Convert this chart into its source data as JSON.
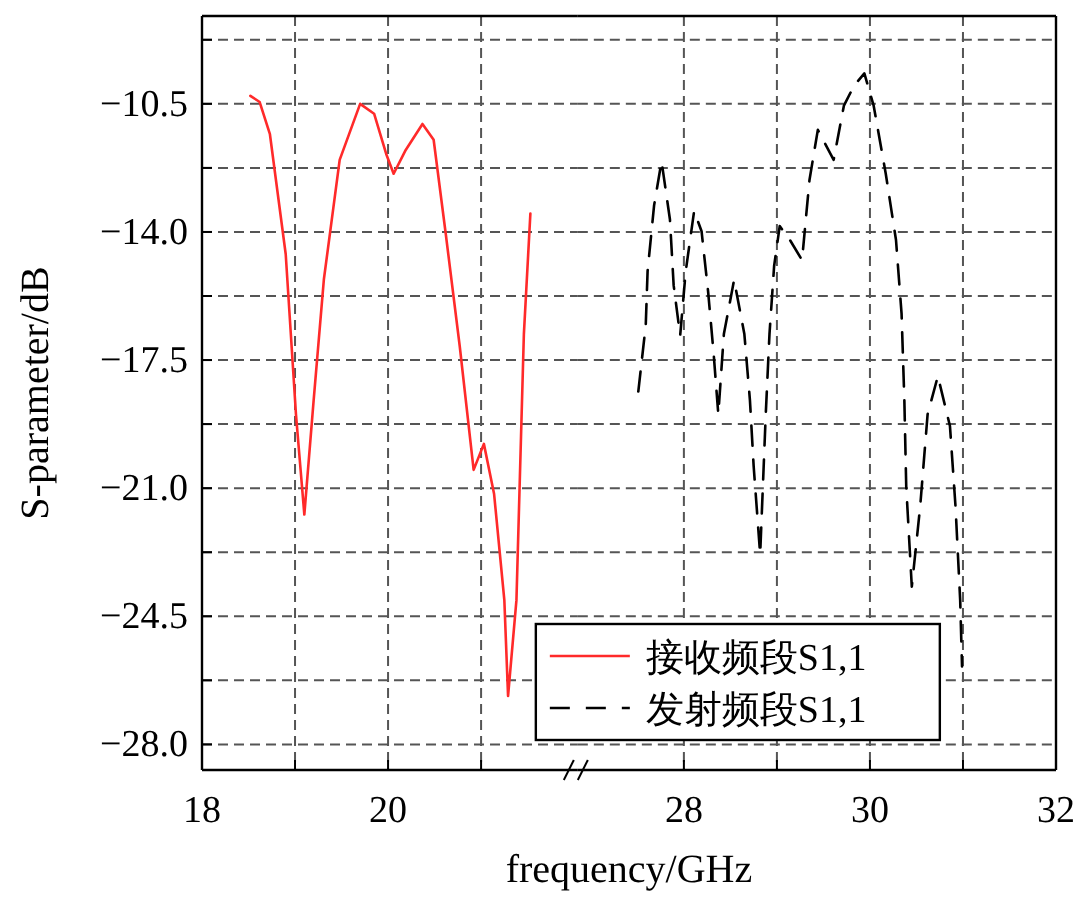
{
  "chart_data": [
    {
      "type": "line",
      "ylabel": "S-parameter/dB",
      "xlim": [
        18,
        22.04
      ],
      "ylim": [
        -28.7,
        -8.1
      ],
      "xticks": [
        18,
        {
          "value": 19,
          "label": null
        },
        20,
        {
          "value": 21,
          "label": null
        }
      ],
      "yticks": [
        {
          "value": -8.75,
          "label": null
        },
        {
          "value": -10.5,
          "label": "−10.5"
        },
        {
          "value": -12.25,
          "label": null
        },
        {
          "value": -14.0,
          "label": "−14.0"
        },
        {
          "value": -15.75,
          "label": null
        },
        {
          "value": -17.5,
          "label": "−17.5"
        },
        {
          "value": -19.25,
          "label": null
        },
        {
          "value": -21.0,
          "label": "−21.0"
        },
        {
          "value": -22.75,
          "label": null
        },
        {
          "value": -24.5,
          "label": "−24.5"
        },
        {
          "value": -26.25,
          "label": null
        },
        {
          "value": -28.0,
          "label": "−28.0"
        }
      ],
      "grid": true,
      "marker": "none",
      "series": [
        {
          "name": "接收频段S1,1",
          "color": "#ff2a2a",
          "line_style": "solid",
          "x": [
            18.52,
            18.62,
            18.73,
            18.9,
            19.01,
            19.1,
            19.2,
            19.31,
            19.48,
            19.7,
            19.85,
            19.98,
            20.06,
            20.19,
            20.37,
            20.49,
            20.62,
            20.77,
            20.92,
            21.03,
            21.14,
            21.25,
            21.29,
            21.38,
            21.46,
            21.53
          ],
          "values": [
            -10.28,
            -10.45,
            -11.33,
            -14.61,
            -18.98,
            -21.72,
            -18.6,
            -15.3,
            -12.03,
            -10.5,
            -10.77,
            -11.87,
            -12.41,
            -11.76,
            -11.05,
            -11.48,
            -14.05,
            -17.11,
            -20.5,
            -19.79,
            -21.16,
            -24.06,
            -26.68,
            -24.06,
            -16.79,
            -13.5
          ]
        }
      ]
    },
    {
      "type": "line",
      "xlabel": "frequency/GHz",
      "xlim": [
        26.86,
        32
      ],
      "ylim": [
        -28.7,
        -8.1
      ],
      "xticks": [
        28,
        {
          "value": 29,
          "label": null
        },
        30,
        {
          "value": 31,
          "label": null
        },
        32
      ],
      "yticks": [
        {
          "value": -8.75,
          "label": null
        },
        {
          "value": -10.5,
          "label": null
        },
        {
          "value": -12.25,
          "label": null
        },
        {
          "value": -14.0,
          "label": null
        },
        {
          "value": -15.75,
          "label": null
        },
        {
          "value": -17.5,
          "label": null
        },
        {
          "value": -19.25,
          "label": null
        },
        {
          "value": -21.0,
          "label": null
        },
        {
          "value": -22.75,
          "label": null
        },
        {
          "value": -24.5,
          "label": null
        },
        {
          "value": -26.25,
          "label": null
        },
        {
          "value": -28.0,
          "label": null
        }
      ],
      "tick_labels": "x",
      "grid": true,
      "legend": "bottom left",
      "marker": "none",
      "series": [
        {
          "name": "发射频段S1,1",
          "color": "#000000",
          "line_style": "dashed",
          "x": [
            27.51,
            27.59,
            27.61,
            27.68,
            27.76,
            27.85,
            27.89,
            27.96,
            28.02,
            28.11,
            28.19,
            28.26,
            28.32,
            28.37,
            28.43,
            28.54,
            28.65,
            28.71,
            28.75,
            28.82,
            28.88,
            28.92,
            28.97,
            29.03,
            29.14,
            29.27,
            29.35,
            29.44,
            29.61,
            29.72,
            29.83,
            29.94,
            30.04,
            30.17,
            30.28,
            30.34,
            30.37,
            30.39,
            30.45,
            30.54,
            30.62,
            30.73,
            30.86,
            30.92,
            30.97,
            30.99
          ],
          "values": [
            -18.36,
            -16.55,
            -15.07,
            -13.27,
            -12.07,
            -13.66,
            -15.46,
            -16.83,
            -15.07,
            -13.43,
            -13.98,
            -15.62,
            -17.33,
            -18.98,
            -16.79,
            -15.31,
            -16.79,
            -18.6,
            -20.4,
            -22.81,
            -18.98,
            -16.79,
            -14.93,
            -13.84,
            -14.22,
            -14.77,
            -12.58,
            -11.21,
            -12.03,
            -10.55,
            -10.0,
            -9.67,
            -10.55,
            -12.41,
            -14.22,
            -16.24,
            -18.6,
            -20.95,
            -23.69,
            -21.5,
            -18.98,
            -17.94,
            -19.3,
            -21.5,
            -24.06,
            -25.87
          ]
        }
      ]
    }
  ]
}
